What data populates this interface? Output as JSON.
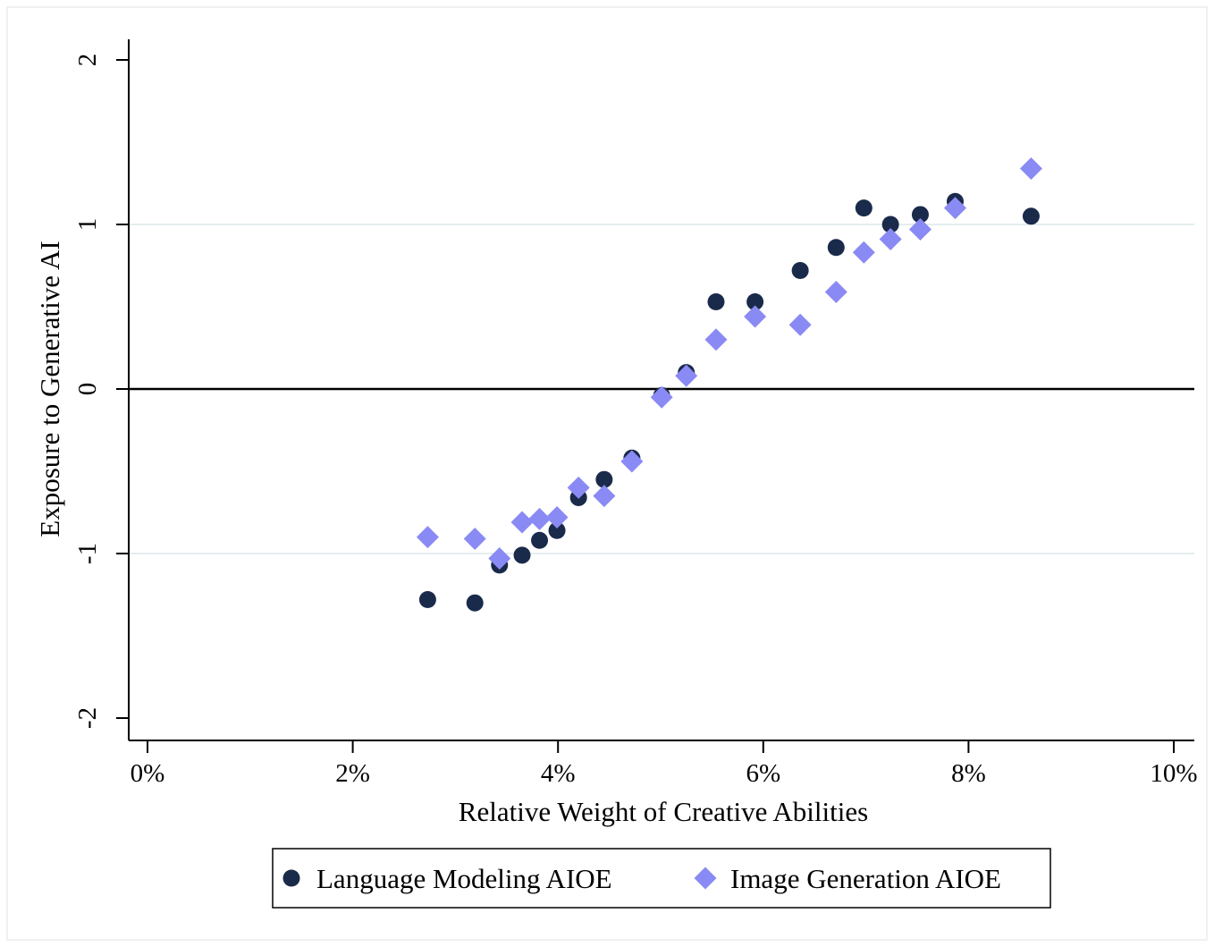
{
  "chart_data": {
    "type": "scatter",
    "title": "",
    "xlabel": "Relative Weight of Creative Abilities",
    "ylabel": "Exposure to Generative AI",
    "xlim": [
      0,
      10
    ],
    "ylim": [
      -2,
      2
    ],
    "x_ticks": [
      0,
      2,
      4,
      6,
      8,
      10
    ],
    "x_tick_labels": [
      "0%",
      "2%",
      "4%",
      "6%",
      "8%",
      "10%"
    ],
    "y_ticks": [
      -2,
      -1,
      0,
      1,
      2
    ],
    "y_tick_labels": [
      "-2",
      "-1",
      "0",
      "1",
      "2"
    ],
    "grid": "horizontal",
    "reference_line_y": 0,
    "legend_position": "bottom",
    "series": [
      {
        "name": "Language Modeling AIOE",
        "marker": "circle",
        "color": "#1a2a4a",
        "points": [
          [
            2.73,
            -1.28
          ],
          [
            3.19,
            -1.3
          ],
          [
            3.43,
            -1.07
          ],
          [
            3.65,
            -1.01
          ],
          [
            3.82,
            -0.92
          ],
          [
            3.99,
            -0.86
          ],
          [
            4.2,
            -0.66
          ],
          [
            4.45,
            -0.55
          ],
          [
            4.72,
            -0.42
          ],
          [
            5.01,
            -0.04
          ],
          [
            5.25,
            0.1
          ],
          [
            5.54,
            0.53
          ],
          [
            5.92,
            0.53
          ],
          [
            6.36,
            0.72
          ],
          [
            6.71,
            0.86
          ],
          [
            6.98,
            1.1
          ],
          [
            7.24,
            1.0
          ],
          [
            7.53,
            1.06
          ],
          [
            7.87,
            1.14
          ],
          [
            8.61,
            1.05
          ]
        ]
      },
      {
        "name": "Image Generation AIOE",
        "marker": "diamond",
        "color": "#8a8af5",
        "points": [
          [
            2.73,
            -0.9
          ],
          [
            3.19,
            -0.91
          ],
          [
            3.43,
            -1.03
          ],
          [
            3.65,
            -0.81
          ],
          [
            3.82,
            -0.79
          ],
          [
            3.99,
            -0.78
          ],
          [
            4.2,
            -0.6
          ],
          [
            4.45,
            -0.65
          ],
          [
            4.72,
            -0.44
          ],
          [
            5.01,
            -0.05
          ],
          [
            5.25,
            0.08
          ],
          [
            5.54,
            0.3
          ],
          [
            5.92,
            0.44
          ],
          [
            6.36,
            0.39
          ],
          [
            6.71,
            0.59
          ],
          [
            6.98,
            0.83
          ],
          [
            7.24,
            0.91
          ],
          [
            7.53,
            0.97
          ],
          [
            7.87,
            1.1
          ],
          [
            8.61,
            1.34
          ]
        ]
      }
    ]
  }
}
